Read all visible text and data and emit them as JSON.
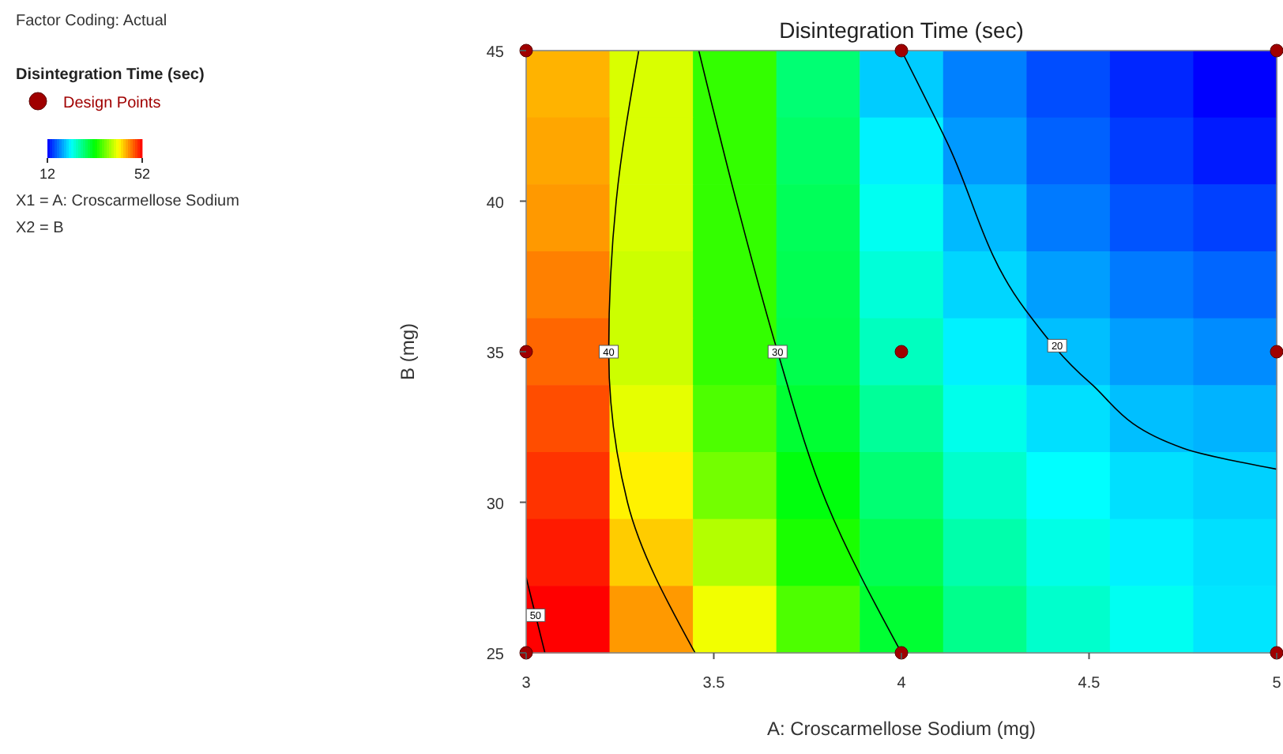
{
  "chart_data": {
    "type": "heatmap",
    "title": "Disintegration Time (sec)",
    "xlabel": "A: Croscarmellose Sodium  (mg)",
    "ylabel": "B  (mg)",
    "legend_title": "Disintegration Time (sec)",
    "legend": "top left",
    "annotations": [
      "Factor Coding: Actual",
      "X1 = A: Croscarmellose Sodium",
      "X2 = B"
    ],
    "xlim": [
      3,
      5
    ],
    "xticks": [
      3,
      3.5,
      4,
      4.5,
      5
    ],
    "ylim": [
      25,
      45
    ],
    "yticks": [
      25,
      30,
      35,
      40,
      45
    ],
    "clim": [
      12,
      52
    ],
    "cticks": [
      12,
      52
    ],
    "cells": [
      [
        45,
        40.5,
        34,
        27.5,
        20,
        17,
        15,
        13.5,
        12
      ],
      [
        45.5,
        40.5,
        34,
        28,
        21.5,
        18,
        15.8,
        14.3,
        13
      ],
      [
        46,
        40.5,
        34,
        28.5,
        22.5,
        19.3,
        16.8,
        15.3,
        14.5
      ],
      [
        47,
        40,
        34,
        28.8,
        23.5,
        20.4,
        18.2,
        16.8,
        16
      ],
      [
        48,
        40,
        34,
        29,
        24.5,
        21.5,
        19.5,
        18.2,
        17.5
      ],
      [
        49,
        41,
        35,
        30,
        26,
        22.8,
        20.8,
        19.5,
        19
      ],
      [
        50,
        42.5,
        36.5,
        31.5,
        27.5,
        24,
        22,
        20.8,
        20.2
      ],
      [
        51,
        44,
        39,
        33,
        28.8,
        25.3,
        23,
        21.5,
        20.8
      ],
      [
        52,
        46,
        41.5,
        35,
        30,
        26.5,
        24,
        22.5,
        21
      ]
    ],
    "series": [
      {
        "name": "50",
        "type": "line",
        "color": "#000000",
        "x": [
          3,
          3.05
        ],
        "values": [
          27.5,
          25
        ]
      },
      {
        "name": "40",
        "type": "line",
        "color": "#000000",
        "x": [
          3.3,
          3.24,
          3.22,
          3.27,
          3.45
        ],
        "values": [
          45,
          40,
          35,
          30,
          25
        ]
      },
      {
        "name": "30",
        "type": "line",
        "color": "#000000",
        "x": [
          3.46,
          3.56,
          3.67,
          3.8,
          4.0
        ],
        "values": [
          45,
          40,
          35,
          30,
          25
        ]
      },
      {
        "name": "20",
        "type": "line",
        "color": "#000000",
        "x": [
          4.0,
          4.12,
          4.33,
          4.5,
          4.75,
          5
        ],
        "values": [
          45,
          42,
          36.4,
          34,
          31.8,
          31.1
        ]
      },
      {
        "name": "Design Points",
        "type": "scatter",
        "marker": "circle",
        "color": "#a00000",
        "x": [
          3,
          4,
          5,
          3,
          4,
          5,
          3,
          4,
          5
        ],
        "values": [
          45,
          45,
          45,
          35,
          35,
          35,
          25,
          25,
          25
        ]
      }
    ]
  }
}
